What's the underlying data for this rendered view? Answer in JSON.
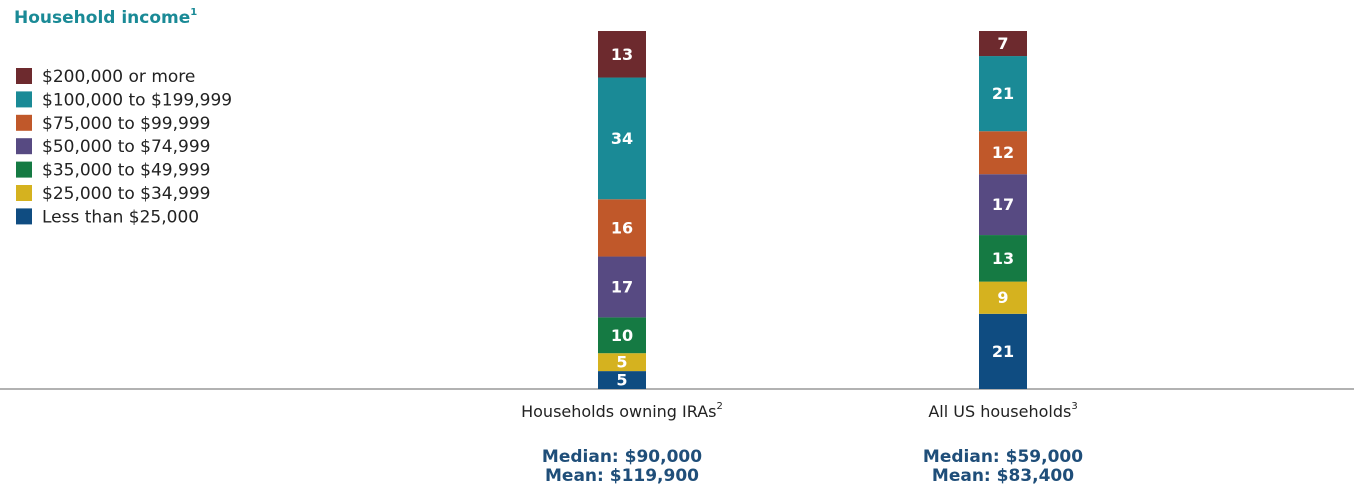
{
  "chart_data": {
    "type": "stacked_bar",
    "title": "Household income",
    "title_note": "1",
    "categories": [
      "Households owning IRAs",
      "All US households"
    ],
    "category_notes": [
      "2",
      "3"
    ],
    "median_labels": [
      "Median: $90,000",
      "Median: $59,000"
    ],
    "mean_labels": [
      "Mean: $119,900",
      "Mean: $83,400"
    ],
    "ylim": [
      0,
      100
    ],
    "series": [
      {
        "name": "Less than $25,000",
        "color": "#0f4c81",
        "values": [
          5,
          21
        ]
      },
      {
        "name": "$25,000 to $34,999",
        "color": "#d5b21f",
        "values": [
          5,
          9
        ]
      },
      {
        "name": "$35,000 to $49,999",
        "color": "#157a43",
        "values": [
          10,
          13
        ]
      },
      {
        "name": "$50,000 to $74,999",
        "color": "#574a82",
        "values": [
          17,
          17
        ]
      },
      {
        "name": "$75,000 to $99,999",
        "color": "#c0582a",
        "values": [
          16,
          12
        ]
      },
      {
        "name": "$100,000 to $199,999",
        "color": "#1a8a96",
        "values": [
          34,
          21
        ]
      },
      {
        "name": "$200,000 or more",
        "color": "#6d2a2e",
        "values": [
          13,
          7
        ]
      }
    ]
  }
}
